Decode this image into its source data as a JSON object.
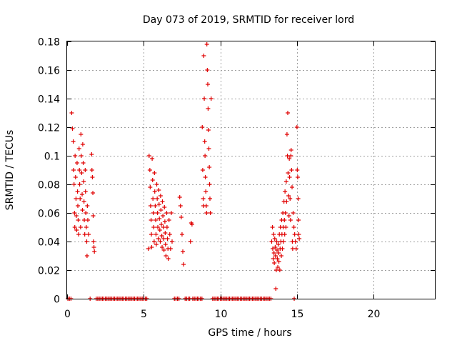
{
  "chart_data": {
    "type": "scatter",
    "title": "Day 073 of 2019, SRMTID for receiver lord",
    "xlabel": "GPS time / hours",
    "ylabel": "SRMTID / TECUs",
    "xlim": [
      0,
      24
    ],
    "ylim": [
      0,
      0.18
    ],
    "xticks": [
      "0",
      "5",
      "10",
      "15",
      "20"
    ],
    "xtick_values": [
      0,
      5,
      10,
      15,
      20
    ],
    "yticks": [
      "0",
      "0.02",
      "0.04",
      "0.06",
      "0.08",
      "0.1",
      "0.12",
      "0.14",
      "0.16",
      "0.18"
    ],
    "ytick_values": [
      0,
      0.02,
      0.04,
      0.06,
      0.08,
      0.1,
      0.12,
      0.14,
      0.16,
      0.18
    ],
    "grid": true,
    "marker": "+",
    "color": "#e00000",
    "series": [
      {
        "name": "SRMTID",
        "points": [
          [
            0.05,
            0
          ],
          [
            0.15,
            0
          ],
          [
            0.25,
            0
          ],
          [
            0.3,
            0.13
          ],
          [
            0.35,
            0.119
          ],
          [
            0.4,
            0.11
          ],
          [
            0.42,
            0.09
          ],
          [
            0.45,
            0.08
          ],
          [
            0.48,
            0.06
          ],
          [
            0.5,
            0.05
          ],
          [
            0.52,
            0.1
          ],
          [
            0.55,
            0.085
          ],
          [
            0.58,
            0.07
          ],
          [
            0.6,
            0.058
          ],
          [
            0.62,
            0.048
          ],
          [
            0.65,
            0.095
          ],
          [
            0.68,
            0.075
          ],
          [
            0.7,
            0.065
          ],
          [
            0.72,
            0.055
          ],
          [
            0.75,
            0.045
          ],
          [
            0.78,
            0.105
          ],
          [
            0.8,
            0.09
          ],
          [
            0.82,
            0.08
          ],
          [
            0.85,
            0.07
          ],
          [
            0.88,
            0.05
          ],
          [
            0.9,
            0.115
          ],
          [
            0.92,
            0.1
          ],
          [
            0.95,
            0.088
          ],
          [
            0.98,
            0.073
          ],
          [
            1.0,
            0.062
          ],
          [
            1.02,
            0.108
          ],
          [
            1.05,
            0.095
          ],
          [
            1.08,
            0.082
          ],
          [
            1.1,
            0.068
          ],
          [
            1.12,
            0.055
          ],
          [
            1.15,
            0.045
          ],
          [
            1.18,
            0.09
          ],
          [
            1.2,
            0.075
          ],
          [
            1.22,
            0.06
          ],
          [
            1.25,
            0.05
          ],
          [
            1.28,
            0.04
          ],
          [
            1.3,
            0.03
          ],
          [
            1.32,
            0.065
          ],
          [
            1.35,
            0.055
          ],
          [
            1.4,
            0.045
          ],
          [
            1.5,
            0
          ],
          [
            1.6,
            0.101
          ],
          [
            1.62,
            0.09
          ],
          [
            1.65,
            0.085
          ],
          [
            1.68,
            0.074
          ],
          [
            1.7,
            0.058
          ],
          [
            1.72,
            0.04
          ],
          [
            1.75,
            0.036
          ],
          [
            1.78,
            0.033
          ],
          [
            1.9,
            0
          ],
          [
            2.0,
            0
          ],
          [
            2.1,
            0
          ],
          [
            2.2,
            0
          ],
          [
            2.3,
            0
          ],
          [
            2.4,
            0
          ],
          [
            2.5,
            0
          ],
          [
            2.6,
            0
          ],
          [
            2.7,
            0
          ],
          [
            2.8,
            0
          ],
          [
            2.9,
            0
          ],
          [
            3.0,
            0
          ],
          [
            3.1,
            0
          ],
          [
            3.2,
            0
          ],
          [
            3.3,
            0
          ],
          [
            3.4,
            0
          ],
          [
            3.5,
            0
          ],
          [
            3.6,
            0
          ],
          [
            3.7,
            0
          ],
          [
            3.8,
            0
          ],
          [
            3.9,
            0
          ],
          [
            4.0,
            0
          ],
          [
            4.1,
            0
          ],
          [
            4.2,
            0
          ],
          [
            4.3,
            0
          ],
          [
            4.4,
            0
          ],
          [
            4.5,
            0
          ],
          [
            4.6,
            0
          ],
          [
            4.7,
            0
          ],
          [
            4.8,
            0
          ],
          [
            4.9,
            0
          ],
          [
            5.0,
            0
          ],
          [
            5.1,
            0
          ],
          [
            5.2,
            0
          ],
          [
            5.3,
            0.035
          ],
          [
            5.35,
            0.1
          ],
          [
            5.4,
            0.09
          ],
          [
            5.42,
            0.078
          ],
          [
            5.45,
            0.065
          ],
          [
            5.48,
            0.055
          ],
          [
            5.5,
            0.045
          ],
          [
            5.52,
            0.036
          ],
          [
            5.55,
            0.098
          ],
          [
            5.58,
            0.083
          ],
          [
            5.6,
            0.07
          ],
          [
            5.62,
            0.06
          ],
          [
            5.65,
            0.05
          ],
          [
            5.68,
            0.04
          ],
          [
            5.7,
            0.088
          ],
          [
            5.72,
            0.075
          ],
          [
            5.75,
            0.065
          ],
          [
            5.78,
            0.055
          ],
          [
            5.8,
            0.045
          ],
          [
            5.82,
            0.038
          ],
          [
            5.85,
            0.08
          ],
          [
            5.88,
            0.07
          ],
          [
            5.9,
            0.06
          ],
          [
            5.92,
            0.05
          ],
          [
            5.95,
            0.042
          ],
          [
            5.98,
            0.076
          ],
          [
            6.0,
            0.066
          ],
          [
            6.02,
            0.056
          ],
          [
            6.05,
            0.048
          ],
          [
            6.08,
            0.04
          ],
          [
            6.1,
            0.072
          ],
          [
            6.12,
            0.062
          ],
          [
            6.15,
            0.052
          ],
          [
            6.18,
            0.044
          ],
          [
            6.2,
            0.036
          ],
          [
            6.22,
            0.068
          ],
          [
            6.25,
            0.058
          ],
          [
            6.28,
            0.05
          ],
          [
            6.3,
            0.042
          ],
          [
            6.32,
            0.034
          ],
          [
            6.35,
            0.064
          ],
          [
            6.38,
            0.054
          ],
          [
            6.4,
            0.046
          ],
          [
            6.42,
            0.038
          ],
          [
            6.45,
            0.03
          ],
          [
            6.5,
            0.06
          ],
          [
            6.52,
            0.05
          ],
          [
            6.55,
            0.042
          ],
          [
            6.58,
            0.035
          ],
          [
            6.6,
            0.028
          ],
          [
            6.65,
            0.055
          ],
          [
            6.7,
            0.045
          ],
          [
            6.75,
            0.035
          ],
          [
            6.8,
            0.06
          ],
          [
            6.85,
            0.04
          ],
          [
            7.0,
            0
          ],
          [
            7.1,
            0
          ],
          [
            7.2,
            0
          ],
          [
            7.3,
            0
          ],
          [
            7.35,
            0.071
          ],
          [
            7.4,
            0.065
          ],
          [
            7.45,
            0.057
          ],
          [
            7.5,
            0.045
          ],
          [
            7.55,
            0.033
          ],
          [
            7.6,
            0.024
          ],
          [
            7.7,
            0
          ],
          [
            7.8,
            0
          ],
          [
            7.9,
            0
          ],
          [
            8.0,
            0
          ],
          [
            8.05,
            0.04
          ],
          [
            8.1,
            0.053
          ],
          [
            8.15,
            0.052
          ],
          [
            8.2,
            0
          ],
          [
            8.3,
            0
          ],
          [
            8.4,
            0
          ],
          [
            8.5,
            0
          ],
          [
            8.6,
            0
          ],
          [
            8.7,
            0
          ],
          [
            8.8,
            0
          ],
          [
            8.82,
            0.12
          ],
          [
            8.85,
            0.09
          ],
          [
            8.88,
            0.07
          ],
          [
            8.9,
            0.065
          ],
          [
            8.92,
            0.17
          ],
          [
            8.95,
            0.14
          ],
          [
            8.98,
            0.11
          ],
          [
            9.0,
            0.1
          ],
          [
            9.02,
            0.085
          ],
          [
            9.05,
            0.075
          ],
          [
            9.08,
            0.065
          ],
          [
            9.1,
            0.06
          ],
          [
            9.12,
            0.178
          ],
          [
            9.15,
            0.16
          ],
          [
            9.18,
            0.15
          ],
          [
            9.2,
            0.133
          ],
          [
            9.22,
            0.118
          ],
          [
            9.25,
            0.105
          ],
          [
            9.28,
            0.092
          ],
          [
            9.3,
            0.08
          ],
          [
            9.32,
            0.07
          ],
          [
            9.35,
            0.06
          ],
          [
            9.4,
            0.14
          ],
          [
            9.5,
            0
          ],
          [
            9.6,
            0
          ],
          [
            9.7,
            0
          ],
          [
            9.8,
            0
          ],
          [
            9.9,
            0
          ],
          [
            10.0,
            0
          ],
          [
            10.1,
            0
          ],
          [
            10.2,
            0
          ],
          [
            10.3,
            0
          ],
          [
            10.4,
            0
          ],
          [
            10.5,
            0
          ],
          [
            10.6,
            0
          ],
          [
            10.7,
            0
          ],
          [
            10.8,
            0
          ],
          [
            10.9,
            0
          ],
          [
            11.0,
            0
          ],
          [
            11.1,
            0
          ],
          [
            11.2,
            0
          ],
          [
            11.3,
            0
          ],
          [
            11.4,
            0
          ],
          [
            11.5,
            0
          ],
          [
            11.6,
            0
          ],
          [
            11.7,
            0
          ],
          [
            11.8,
            0
          ],
          [
            11.9,
            0
          ],
          [
            12.0,
            0
          ],
          [
            12.1,
            0
          ],
          [
            12.2,
            0
          ],
          [
            12.3,
            0
          ],
          [
            12.4,
            0
          ],
          [
            12.5,
            0
          ],
          [
            12.6,
            0
          ],
          [
            12.7,
            0
          ],
          [
            12.8,
            0
          ],
          [
            12.9,
            0
          ],
          [
            13.0,
            0
          ],
          [
            13.1,
            0
          ],
          [
            13.2,
            0
          ],
          [
            13.3,
            0
          ],
          [
            13.35,
            0.04
          ],
          [
            13.4,
            0.05
          ],
          [
            13.42,
            0.035
          ],
          [
            13.45,
            0.028
          ],
          [
            13.48,
            0.045
          ],
          [
            13.5,
            0.032
          ],
          [
            13.52,
            0.025
          ],
          [
            13.55,
            0.042
          ],
          [
            13.58,
            0.036
          ],
          [
            13.6,
            0.03
          ],
          [
            13.62,
            0.007
          ],
          [
            13.65,
            0.02
          ],
          [
            13.68,
            0.04
          ],
          [
            13.7,
            0.034
          ],
          [
            13.72,
            0.028
          ],
          [
            13.75,
            0.022
          ],
          [
            13.78,
            0.038
          ],
          [
            13.8,
            0.032
          ],
          [
            13.82,
            0.026
          ],
          [
            13.85,
            0.045
          ],
          [
            13.88,
            0.02
          ],
          [
            13.9,
            0.035
          ],
          [
            13.92,
            0.05
          ],
          [
            13.95,
            0.04
          ],
          [
            13.98,
            0.03
          ],
          [
            14.0,
            0.055
          ],
          [
            14.02,
            0.045
          ],
          [
            14.05,
            0.035
          ],
          [
            14.08,
            0.06
          ],
          [
            14.1,
            0.05
          ],
          [
            14.12,
            0.04
          ],
          [
            14.15,
            0.068
          ],
          [
            14.18,
            0.055
          ],
          [
            14.2,
            0.045
          ],
          [
            14.22,
            0.075
          ],
          [
            14.25,
            0.06
          ],
          [
            14.28,
            0.05
          ],
          [
            14.3,
            0.082
          ],
          [
            14.32,
            0.068
          ],
          [
            14.35,
            0.115
          ],
          [
            14.38,
            0.1
          ],
          [
            14.4,
            0.13
          ],
          [
            14.42,
            0.088
          ],
          [
            14.45,
            0.072
          ],
          [
            14.48,
            0.058
          ],
          [
            14.5,
            0.098
          ],
          [
            14.52,
            0.085
          ],
          [
            14.55,
            0.07
          ],
          [
            14.58,
            0.055
          ],
          [
            14.6,
            0.1
          ],
          [
            14.62,
            0.104
          ],
          [
            14.65,
            0.09
          ],
          [
            14.68,
            0.078
          ],
          [
            14.7,
            0.04
          ],
          [
            14.72,
            0.035
          ],
          [
            14.75,
            0.06
          ],
          [
            14.8,
            0.05
          ],
          [
            14.82,
            0.0
          ],
          [
            14.85,
            0.045
          ],
          [
            14.9,
            0.04
          ],
          [
            14.95,
            0.035
          ],
          [
            15.0,
            0.12
          ],
          [
            15.02,
            0.09
          ],
          [
            15.05,
            0.085
          ],
          [
            15.08,
            0.07
          ],
          [
            15.1,
            0.055
          ],
          [
            15.12,
            0.045
          ],
          [
            15.15,
            0.042
          ]
        ]
      }
    ]
  }
}
